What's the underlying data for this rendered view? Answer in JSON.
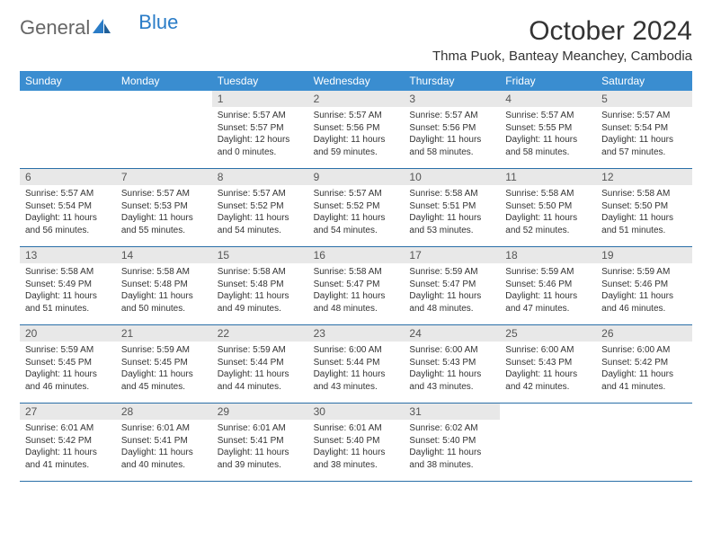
{
  "brand": {
    "general": "General",
    "blue": "Blue"
  },
  "title": "October 2024",
  "location": "Thma Puok, Banteay Meanchey, Cambodia",
  "colors": {
    "header_bg": "#3a8dd0",
    "header_text": "#ffffff",
    "daynum_bg": "#e8e8e8",
    "border": "#2a6fa8",
    "brand_blue": "#2a7cc7"
  },
  "day_labels": [
    "Sunday",
    "Monday",
    "Tuesday",
    "Wednesday",
    "Thursday",
    "Friday",
    "Saturday"
  ],
  "weeks": [
    [
      {
        "n": "",
        "sr": "",
        "ss": "",
        "dl": ""
      },
      {
        "n": "",
        "sr": "",
        "ss": "",
        "dl": ""
      },
      {
        "n": "1",
        "sr": "Sunrise: 5:57 AM",
        "ss": "Sunset: 5:57 PM",
        "dl": "Daylight: 12 hours and 0 minutes."
      },
      {
        "n": "2",
        "sr": "Sunrise: 5:57 AM",
        "ss": "Sunset: 5:56 PM",
        "dl": "Daylight: 11 hours and 59 minutes."
      },
      {
        "n": "3",
        "sr": "Sunrise: 5:57 AM",
        "ss": "Sunset: 5:56 PM",
        "dl": "Daylight: 11 hours and 58 minutes."
      },
      {
        "n": "4",
        "sr": "Sunrise: 5:57 AM",
        "ss": "Sunset: 5:55 PM",
        "dl": "Daylight: 11 hours and 58 minutes."
      },
      {
        "n": "5",
        "sr": "Sunrise: 5:57 AM",
        "ss": "Sunset: 5:54 PM",
        "dl": "Daylight: 11 hours and 57 minutes."
      }
    ],
    [
      {
        "n": "6",
        "sr": "Sunrise: 5:57 AM",
        "ss": "Sunset: 5:54 PM",
        "dl": "Daylight: 11 hours and 56 minutes."
      },
      {
        "n": "7",
        "sr": "Sunrise: 5:57 AM",
        "ss": "Sunset: 5:53 PM",
        "dl": "Daylight: 11 hours and 55 minutes."
      },
      {
        "n": "8",
        "sr": "Sunrise: 5:57 AM",
        "ss": "Sunset: 5:52 PM",
        "dl": "Daylight: 11 hours and 54 minutes."
      },
      {
        "n": "9",
        "sr": "Sunrise: 5:57 AM",
        "ss": "Sunset: 5:52 PM",
        "dl": "Daylight: 11 hours and 54 minutes."
      },
      {
        "n": "10",
        "sr": "Sunrise: 5:58 AM",
        "ss": "Sunset: 5:51 PM",
        "dl": "Daylight: 11 hours and 53 minutes."
      },
      {
        "n": "11",
        "sr": "Sunrise: 5:58 AM",
        "ss": "Sunset: 5:50 PM",
        "dl": "Daylight: 11 hours and 52 minutes."
      },
      {
        "n": "12",
        "sr": "Sunrise: 5:58 AM",
        "ss": "Sunset: 5:50 PM",
        "dl": "Daylight: 11 hours and 51 minutes."
      }
    ],
    [
      {
        "n": "13",
        "sr": "Sunrise: 5:58 AM",
        "ss": "Sunset: 5:49 PM",
        "dl": "Daylight: 11 hours and 51 minutes."
      },
      {
        "n": "14",
        "sr": "Sunrise: 5:58 AM",
        "ss": "Sunset: 5:48 PM",
        "dl": "Daylight: 11 hours and 50 minutes."
      },
      {
        "n": "15",
        "sr": "Sunrise: 5:58 AM",
        "ss": "Sunset: 5:48 PM",
        "dl": "Daylight: 11 hours and 49 minutes."
      },
      {
        "n": "16",
        "sr": "Sunrise: 5:58 AM",
        "ss": "Sunset: 5:47 PM",
        "dl": "Daylight: 11 hours and 48 minutes."
      },
      {
        "n": "17",
        "sr": "Sunrise: 5:59 AM",
        "ss": "Sunset: 5:47 PM",
        "dl": "Daylight: 11 hours and 48 minutes."
      },
      {
        "n": "18",
        "sr": "Sunrise: 5:59 AM",
        "ss": "Sunset: 5:46 PM",
        "dl": "Daylight: 11 hours and 47 minutes."
      },
      {
        "n": "19",
        "sr": "Sunrise: 5:59 AM",
        "ss": "Sunset: 5:46 PM",
        "dl": "Daylight: 11 hours and 46 minutes."
      }
    ],
    [
      {
        "n": "20",
        "sr": "Sunrise: 5:59 AM",
        "ss": "Sunset: 5:45 PM",
        "dl": "Daylight: 11 hours and 46 minutes."
      },
      {
        "n": "21",
        "sr": "Sunrise: 5:59 AM",
        "ss": "Sunset: 5:45 PM",
        "dl": "Daylight: 11 hours and 45 minutes."
      },
      {
        "n": "22",
        "sr": "Sunrise: 5:59 AM",
        "ss": "Sunset: 5:44 PM",
        "dl": "Daylight: 11 hours and 44 minutes."
      },
      {
        "n": "23",
        "sr": "Sunrise: 6:00 AM",
        "ss": "Sunset: 5:44 PM",
        "dl": "Daylight: 11 hours and 43 minutes."
      },
      {
        "n": "24",
        "sr": "Sunrise: 6:00 AM",
        "ss": "Sunset: 5:43 PM",
        "dl": "Daylight: 11 hours and 43 minutes."
      },
      {
        "n": "25",
        "sr": "Sunrise: 6:00 AM",
        "ss": "Sunset: 5:43 PM",
        "dl": "Daylight: 11 hours and 42 minutes."
      },
      {
        "n": "26",
        "sr": "Sunrise: 6:00 AM",
        "ss": "Sunset: 5:42 PM",
        "dl": "Daylight: 11 hours and 41 minutes."
      }
    ],
    [
      {
        "n": "27",
        "sr": "Sunrise: 6:01 AM",
        "ss": "Sunset: 5:42 PM",
        "dl": "Daylight: 11 hours and 41 minutes."
      },
      {
        "n": "28",
        "sr": "Sunrise: 6:01 AM",
        "ss": "Sunset: 5:41 PM",
        "dl": "Daylight: 11 hours and 40 minutes."
      },
      {
        "n": "29",
        "sr": "Sunrise: 6:01 AM",
        "ss": "Sunset: 5:41 PM",
        "dl": "Daylight: 11 hours and 39 minutes."
      },
      {
        "n": "30",
        "sr": "Sunrise: 6:01 AM",
        "ss": "Sunset: 5:40 PM",
        "dl": "Daylight: 11 hours and 38 minutes."
      },
      {
        "n": "31",
        "sr": "Sunrise: 6:02 AM",
        "ss": "Sunset: 5:40 PM",
        "dl": "Daylight: 11 hours and 38 minutes."
      },
      {
        "n": "",
        "sr": "",
        "ss": "",
        "dl": ""
      },
      {
        "n": "",
        "sr": "",
        "ss": "",
        "dl": ""
      }
    ]
  ]
}
